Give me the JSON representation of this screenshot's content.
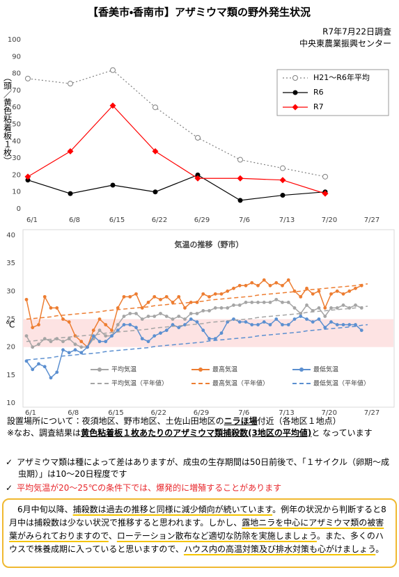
{
  "header": {
    "title": "【香美市・香南市】アザミウマ類の野外発生状況",
    "date": "R7年7月22日調査",
    "org": "中央東農業振興センター"
  },
  "chart_data": [
    {
      "type": "line",
      "y_label": "（頭／黄色粘着板１枚）",
      "categories": [
        "6/1",
        "6/8",
        "6/15",
        "6/22",
        "6/29",
        "7/6",
        "7/13",
        "7/20",
        "7/27"
      ],
      "ylim": [
        0,
        100
      ],
      "yticks": [
        0,
        10,
        20,
        30,
        40,
        50,
        60,
        70,
        80,
        90,
        100
      ],
      "grid": false,
      "legend": "upper right",
      "series": [
        {
          "name": "H21～R6年平均",
          "color": "#7f7f7f",
          "line_style": "dotted",
          "marker": "open-circle",
          "values": [
            77,
            74,
            82,
            60,
            42,
            29,
            24,
            19,
            null
          ]
        },
        {
          "name": "R6",
          "color": "#000000",
          "line_style": "solid",
          "marker": "circle",
          "values": [
            17,
            9,
            14,
            10,
            20,
            5,
            8,
            10,
            null
          ]
        },
        {
          "name": "R7",
          "color": "#ff0000",
          "line_style": "solid",
          "marker": "diamond",
          "values": [
            19,
            34,
            61,
            34,
            18,
            18,
            17,
            9,
            null
          ]
        }
      ]
    },
    {
      "type": "line",
      "title": "気温の推移（野市）",
      "y_label": "℃",
      "categories": [
        "6/1",
        null,
        null,
        null,
        null,
        null,
        null,
        "6/8",
        null,
        null,
        null,
        null,
        null,
        null,
        "6/15",
        null,
        null,
        null,
        null,
        null,
        null,
        "6/22",
        null,
        null,
        null,
        null,
        null,
        null,
        "6/29",
        null,
        null,
        null,
        null,
        null,
        null,
        "7/6",
        null,
        null,
        null,
        null,
        null,
        null,
        "7/13",
        null,
        null,
        null,
        null,
        null,
        null,
        "7/20",
        null,
        null,
        null,
        null,
        null,
        null,
        "7/27"
      ],
      "ylim": [
        10,
        40
      ],
      "yticks": [
        10,
        15,
        20,
        25,
        30,
        35,
        40
      ],
      "grid": false,
      "band": [
        20,
        25
      ],
      "band_color": "#fde3e3",
      "legend": "bottom",
      "series": [
        {
          "name": "平均気温",
          "color": "#a5a5a5",
          "line_style": "solid",
          "marker": "circle",
          "values": [
            22,
            20,
            20.5,
            21.5,
            21,
            21.5,
            21,
            21.5,
            20.5,
            20,
            20,
            21.5,
            23,
            22,
            22,
            24,
            25.5,
            26,
            26,
            25,
            25.5,
            25.5,
            26,
            25.5,
            25,
            25.5,
            25,
            26,
            26,
            26.5,
            26.5,
            27,
            27,
            27,
            27.5,
            27.5,
            28,
            28,
            28,
            28,
            28,
            28.5,
            28,
            28,
            27,
            26,
            27.5,
            26.5,
            27,
            25.5,
            27,
            27,
            27.5,
            27,
            27.5,
            27,
            null
          ]
        },
        {
          "name": "最高気温",
          "color": "#ed7d31",
          "line_style": "solid",
          "marker": "circle",
          "values": [
            28.5,
            23.5,
            24,
            29,
            27,
            27,
            25,
            24.5,
            22,
            21,
            20,
            23,
            25,
            24,
            23,
            27,
            29,
            29,
            29.5,
            27,
            28,
            29,
            28.5,
            29,
            28,
            29,
            27,
            28,
            28,
            29.5,
            29,
            29.5,
            29.5,
            30,
            30.5,
            31,
            31,
            31.5,
            31,
            32,
            31,
            31.5,
            31,
            32,
            30,
            29,
            30.5,
            29.5,
            30,
            27,
            29.5,
            30,
            29.5,
            30,
            30.5,
            31,
            null
          ]
        },
        {
          "name": "最低気温",
          "color": "#5b8fd0",
          "line_style": "solid",
          "marker": "circle",
          "values": [
            17.5,
            16,
            17,
            16.5,
            14.5,
            15.5,
            19.5,
            19,
            19.5,
            19,
            20,
            22,
            21,
            21,
            22,
            23,
            24,
            24,
            23.5,
            21.5,
            21,
            22,
            22.5,
            23,
            24,
            23.5,
            24,
            25,
            24.5,
            23,
            21.5,
            21.5,
            22.5,
            24.5,
            25,
            24.5,
            24.5,
            24,
            24,
            24.5,
            24,
            25,
            24,
            24,
            25,
            25.5,
            25,
            24.5,
            25,
            23.5,
            24.5,
            24,
            24,
            24,
            24,
            23,
            null
          ]
        },
        {
          "name": "平均気温（平年値）",
          "color": "#a5a5a5",
          "line_style": "dashed",
          "marker": "none",
          "values": [
            21.0,
            21.1,
            21.2,
            21.3,
            21.4,
            21.6,
            21.7,
            21.8,
            21.9,
            22.0,
            22.1,
            22.2,
            22.3,
            22.5,
            22.6,
            22.7,
            22.8,
            22.9,
            23.0,
            23.1,
            23.2,
            23.4,
            23.5,
            23.6,
            23.7,
            23.8,
            23.9,
            24.0,
            24.1,
            24.2,
            24.4,
            24.5,
            24.6,
            24.7,
            24.8,
            24.9,
            25.0,
            25.1,
            25.3,
            25.4,
            25.5,
            25.6,
            25.7,
            25.8,
            25.9,
            26.0,
            26.2,
            26.3,
            26.4,
            26.5,
            26.6,
            26.7,
            26.8,
            26.9,
            27.0,
            27.2,
            27.3
          ]
        },
        {
          "name": "最高気温（平年値）",
          "color": "#ed7d31",
          "line_style": "dashed",
          "marker": "none",
          "values": [
            25.0,
            25.1,
            25.2,
            25.3,
            25.4,
            25.6,
            25.7,
            25.8,
            25.9,
            26.0,
            26.1,
            26.2,
            26.3,
            26.5,
            26.6,
            26.7,
            26.8,
            26.9,
            27.0,
            27.1,
            27.2,
            27.4,
            27.5,
            27.6,
            27.7,
            27.8,
            27.9,
            28.0,
            28.1,
            28.2,
            28.4,
            28.5,
            28.6,
            28.7,
            28.8,
            28.9,
            29.0,
            29.1,
            29.3,
            29.4,
            29.5,
            29.6,
            29.7,
            29.8,
            29.9,
            30.0,
            30.2,
            30.3,
            30.4,
            30.5,
            30.6,
            30.7,
            30.8,
            30.9,
            31.0,
            31.2,
            31.3
          ]
        },
        {
          "name": "最低気温（平年値）",
          "color": "#5b8fd0",
          "line_style": "dashed",
          "marker": "none",
          "values": [
            17.7,
            17.8,
            17.9,
            18.0,
            18.1,
            18.3,
            18.4,
            18.5,
            18.6,
            18.7,
            18.8,
            18.9,
            19.0,
            19.2,
            19.3,
            19.4,
            19.5,
            19.6,
            19.7,
            19.8,
            19.9,
            20.1,
            20.2,
            20.3,
            20.4,
            20.5,
            20.6,
            20.7,
            20.8,
            20.9,
            21.1,
            21.2,
            21.3,
            21.4,
            21.5,
            21.6,
            21.7,
            21.8,
            22.0,
            22.1,
            22.2,
            22.3,
            22.4,
            22.5,
            22.6,
            22.7,
            22.9,
            23.0,
            23.1,
            23.2,
            23.3,
            23.4,
            23.5,
            23.6,
            23.7,
            23.9,
            24.0
          ]
        }
      ]
    }
  ],
  "notes": [
    [
      {
        "text": "設置場所について：夜須地区、野市地区、土佐山田地区の"
      },
      {
        "text": "ニラほ場",
        "bold": true,
        "underline": true
      },
      {
        "text": "付近（各地区１地点）"
      }
    ],
    [
      {
        "text": "※なお、調査結果は"
      },
      {
        "text": "黄色粘着板１枚あたりのアザミウマ類捕殺数(3地区の平均値)",
        "bold": true,
        "underline": true
      },
      {
        "text": "と なっています"
      }
    ]
  ],
  "checks": [
    {
      "mark": "✓",
      "text": "アザミウマ類は種によって差はありますが、成虫の生存期間は50日前後で、「１サイクル（卵期～成虫期）」は10～20日程度です",
      "color": "#000000"
    },
    {
      "mark": "✓",
      "text": "平均気温が20～25℃の条件下では、爆発的に増殖することがあります",
      "color": "#e8262b"
    }
  ],
  "box": [
    {
      "text": "6月中旬以降、"
    },
    {
      "text": "捕殺数は過去の推移と同様に減少傾向が続いています",
      "highlight": true
    },
    {
      "text": "。例年の状況から判断すると8月中は捕殺数は少ない状況で推移すると思われます。しかし、"
    },
    {
      "text": "露地ニラを中心にアザミウマ類の被害葉がみられておりますので",
      "highlight": true
    },
    {
      "text": "、"
    },
    {
      "text": "ローテーション散布など適切な防除を実施しましょう",
      "highlight": true
    },
    {
      "text": "。また、多くのハウスで株養成期に入っていると思いますので、"
    },
    {
      "text": "ハウス内の高温対策及び排水対策も心がけましょう",
      "highlight": true
    },
    {
      "text": "。"
    }
  ]
}
